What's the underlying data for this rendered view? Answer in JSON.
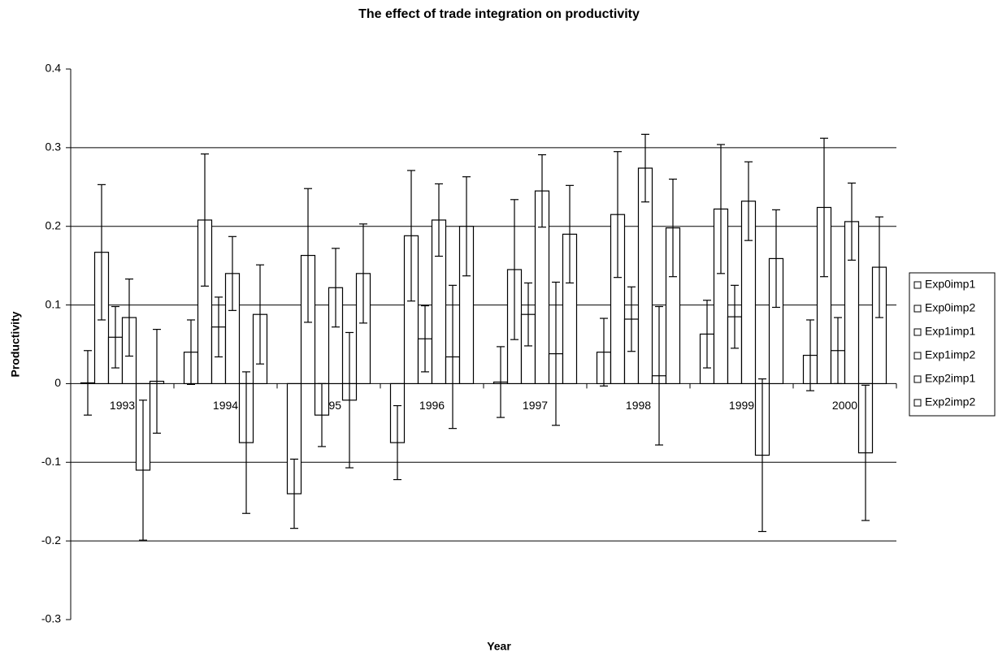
{
  "chart_data": {
    "type": "bar",
    "title": "The effect of trade integration on productivity",
    "x_label": "Year",
    "y_label": "Productivity",
    "categories": [
      "1993",
      "1994",
      "1995",
      "1996",
      "1997",
      "1998",
      "1999",
      "2000"
    ],
    "series": [
      {
        "name": "Exp0imp1",
        "color": "#ffffff",
        "values": [
          0.001,
          0.04,
          -0.14,
          -0.075,
          0.002,
          0.04,
          0.063,
          0.036
        ],
        "errors": [
          0.041,
          0.041,
          0.044,
          0.047,
          0.045,
          0.043,
          0.043,
          0.045
        ]
      },
      {
        "name": "Exp0imp2",
        "color": "#ffffff",
        "values": [
          0.167,
          0.208,
          0.163,
          0.188,
          0.145,
          0.215,
          0.222,
          0.224
        ],
        "errors": [
          0.086,
          0.084,
          0.085,
          0.083,
          0.089,
          0.08,
          0.082,
          0.088
        ]
      },
      {
        "name": "Exp1imp1",
        "color": "#ffffff",
        "values": [
          0.059,
          0.072,
          -0.04,
          0.057,
          0.088,
          0.082,
          0.085,
          0.042
        ],
        "errors": [
          0.039,
          0.038,
          0.04,
          0.042,
          0.04,
          0.041,
          0.04,
          0.042
        ]
      },
      {
        "name": "Exp1imp2",
        "color": "#ffffff",
        "values": [
          0.084,
          0.14,
          0.122,
          0.208,
          0.245,
          0.274,
          0.232,
          0.206
        ],
        "errors": [
          0.049,
          0.047,
          0.05,
          0.046,
          0.046,
          0.043,
          0.05,
          0.049
        ]
      },
      {
        "name": "Exp2imp1",
        "color": "#ffffff",
        "values": [
          -0.11,
          -0.075,
          -0.021,
          0.034,
          0.038,
          0.01,
          -0.091,
          -0.088
        ],
        "errors": [
          0.089,
          0.09,
          0.086,
          0.091,
          0.091,
          0.088,
          0.097,
          0.086
        ]
      },
      {
        "name": "Exp2imp2",
        "color": "#ffffff",
        "values": [
          0.003,
          0.088,
          0.14,
          0.2,
          0.19,
          0.198,
          0.159,
          0.148
        ],
        "errors": [
          0.066,
          0.063,
          0.063,
          0.063,
          0.062,
          0.062,
          0.062,
          0.064
        ]
      }
    ],
    "ylim": [
      -0.3,
      0.4
    ],
    "yticks": [
      -0.3,
      -0.2,
      -0.1,
      0,
      0.1,
      0.2,
      0.3,
      0.4
    ],
    "grid": true,
    "legend": "right"
  }
}
